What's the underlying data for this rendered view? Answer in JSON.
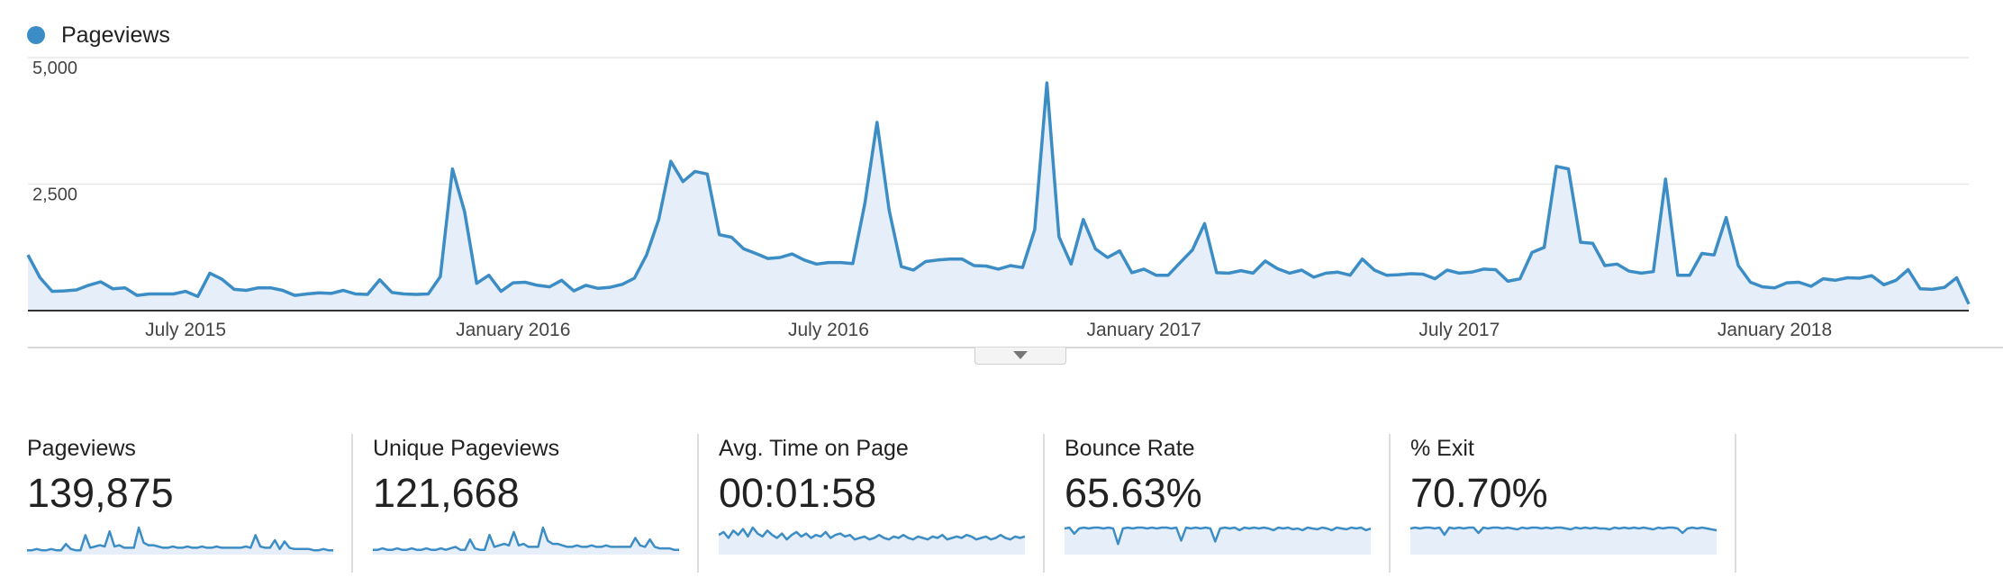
{
  "legend": {
    "label": "Pageviews",
    "color": "#3c8dc5"
  },
  "colors": {
    "line": "#3c8dc5",
    "fill": "#e6eff9",
    "grid": "#e8e8e8",
    "axis": "#333333",
    "tick": "#444444"
  },
  "chart_data": {
    "type": "area",
    "title": "",
    "xlabel": "",
    "ylabel": "",
    "ylim": [
      0,
      5000
    ],
    "y_ticks": [
      "5,000",
      "2,500"
    ],
    "y_tick_values": [
      5000,
      2500
    ],
    "x_ticks": [
      {
        "label": "July 2015",
        "index": 13
      },
      {
        "label": "January 2016",
        "index": 40
      },
      {
        "label": "July 2016",
        "index": 66
      },
      {
        "label": "January 2017",
        "index": 92
      },
      {
        "label": "July 2017",
        "index": 118
      },
      {
        "label": "January 2018",
        "index": 144
      }
    ],
    "grid": true,
    "legend_position": "top-left",
    "series": [
      {
        "name": "Pageviews",
        "values": [
          1100,
          650,
          380,
          390,
          410,
          500,
          570,
          430,
          450,
          300,
          330,
          330,
          330,
          380,
          280,
          740,
          620,
          420,
          400,
          450,
          450,
          400,
          300,
          330,
          350,
          340,
          400,
          330,
          320,
          610,
          360,
          330,
          320,
          330,
          670,
          2800,
          1950,
          540,
          700,
          380,
          550,
          560,
          500,
          470,
          600,
          390,
          500,
          440,
          460,
          520,
          640,
          1100,
          1800,
          2950,
          2550,
          2750,
          2700,
          1500,
          1450,
          1220,
          1130,
          1030,
          1050,
          1120,
          1000,
          920,
          950,
          950,
          930,
          2120,
          3720,
          1980,
          870,
          800,
          970,
          1000,
          1020,
          1020,
          890,
          880,
          820,
          890,
          850,
          1600,
          4500,
          1460,
          920,
          1800,
          1220,
          1050,
          1180,
          750,
          820,
          700,
          700,
          950,
          1200,
          1720,
          750,
          740,
          790,
          740,
          980,
          830,
          740,
          800,
          660,
          740,
          760,
          700,
          1020,
          800,
          700,
          710,
          730,
          720,
          630,
          800,
          740,
          760,
          820,
          810,
          580,
          630,
          1150,
          1250,
          2850,
          2800,
          1350,
          1330,
          890,
          920,
          780,
          740,
          770,
          2600,
          700,
          700,
          1130,
          1100,
          1840,
          890,
          560,
          470,
          450,
          550,
          560,
          480,
          630,
          600,
          650,
          640,
          690,
          510,
          600,
          810,
          430,
          420,
          460,
          650,
          130
        ]
      }
    ]
  },
  "metrics": [
    {
      "name": "Pageviews",
      "value": "139,875",
      "spark": [
        2,
        2,
        3,
        2,
        2,
        3,
        2,
        2,
        7,
        3,
        2,
        2,
        14,
        4,
        5,
        6,
        5,
        17,
        5,
        6,
        4,
        4,
        4,
        20,
        8,
        6,
        6,
        5,
        4,
        4,
        5,
        4,
        4,
        5,
        4,
        4,
        5,
        4,
        4,
        5,
        4,
        4,
        4,
        4,
        4,
        5,
        4,
        14,
        5,
        4,
        4,
        10,
        3,
        9,
        4,
        3,
        3,
        3,
        3,
        2,
        2,
        3,
        2,
        2
      ]
    },
    {
      "name": "Unique Pageviews",
      "value": "121,668",
      "spark": [
        2,
        2,
        3,
        2,
        2,
        3,
        2,
        2,
        3,
        2,
        2,
        3,
        2,
        2,
        3,
        2,
        3,
        4,
        2,
        2,
        9,
        3,
        2,
        2,
        12,
        4,
        5,
        6,
        5,
        14,
        5,
        6,
        4,
        4,
        4,
        17,
        8,
        6,
        6,
        5,
        4,
        4,
        5,
        4,
        4,
        5,
        4,
        4,
        5,
        4,
        4,
        4,
        4,
        4,
        10,
        5,
        4,
        9,
        4,
        3,
        3,
        3,
        2,
        2
      ]
    },
    {
      "name": "Avg. Time on Page",
      "value": "00:01:58",
      "spark": [
        12,
        14,
        10,
        15,
        12,
        16,
        11,
        17,
        13,
        11,
        15,
        12,
        10,
        13,
        9,
        12,
        14,
        11,
        13,
        10,
        12,
        11,
        14,
        10,
        12,
        13,
        11,
        12,
        9,
        10,
        11,
        9,
        10,
        12,
        10,
        9,
        11,
        10,
        12,
        10,
        9,
        11,
        10,
        9,
        11,
        10,
        12,
        9,
        10,
        11,
        10,
        12,
        11,
        9,
        10,
        11,
        9,
        10,
        12,
        10,
        9,
        11,
        10,
        11
      ]
    },
    {
      "name": "Bounce Rate",
      "value": "65.63%",
      "spark": [
        28,
        29,
        22,
        28,
        29,
        28,
        29,
        29,
        28,
        29,
        28,
        10,
        28,
        29,
        28,
        29,
        29,
        28,
        29,
        28,
        29,
        29,
        28,
        29,
        14,
        29,
        28,
        29,
        28,
        29,
        28,
        13,
        28,
        29,
        28,
        29,
        26,
        29,
        28,
        29,
        28,
        29,
        28,
        26,
        29,
        28,
        29,
        27,
        28,
        26,
        29,
        28,
        27,
        29,
        28,
        26,
        29,
        28,
        27,
        29,
        28,
        29,
        26,
        28
      ]
    },
    {
      "name": "% Exit",
      "value": "70.70%",
      "spark": [
        27,
        28,
        27,
        28,
        28,
        27,
        28,
        20,
        28,
        27,
        28,
        27,
        28,
        28,
        22,
        28,
        27,
        28,
        28,
        27,
        28,
        27,
        26,
        28,
        27,
        28,
        28,
        27,
        28,
        27,
        28,
        28,
        27,
        26,
        28,
        27,
        28,
        27,
        28,
        27,
        27,
        26,
        28,
        27,
        28,
        27,
        28,
        27,
        28,
        27,
        26,
        28,
        27,
        28,
        28,
        27,
        22,
        27,
        28,
        27,
        28,
        27,
        26,
        25
      ]
    }
  ]
}
